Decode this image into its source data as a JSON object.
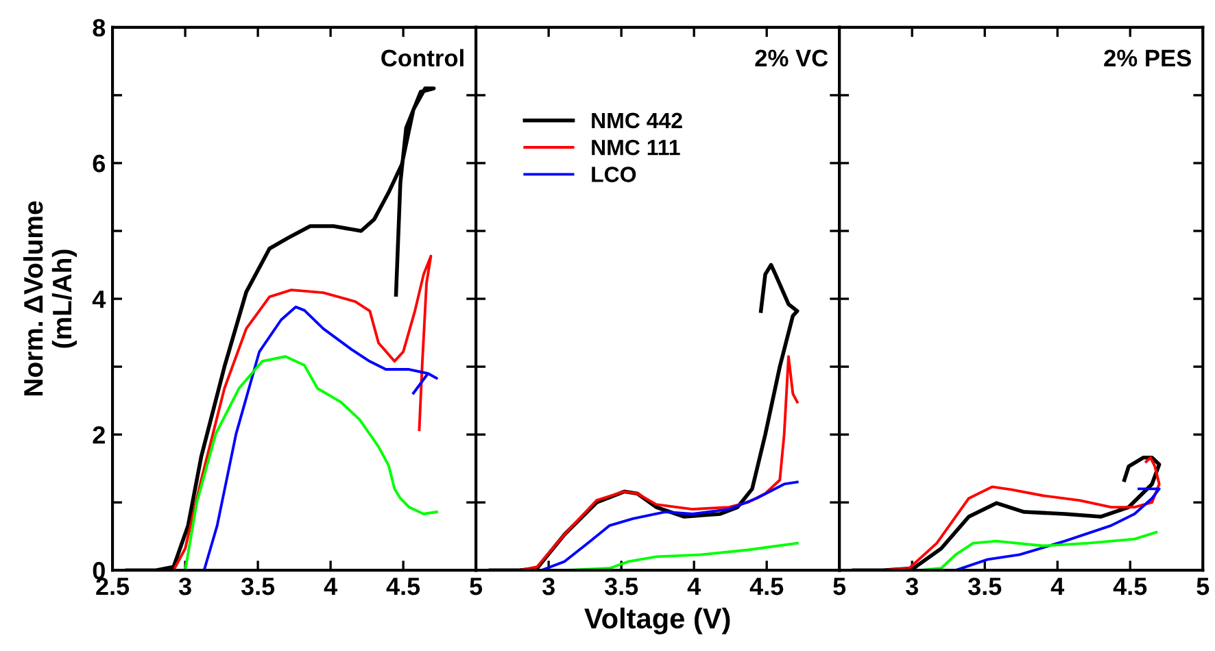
{
  "chart_data": [
    {
      "type": "line",
      "title": "Control",
      "ylabel": "Norm. ΔVolume\n(mL/Ah)",
      "xlim": [
        2.5,
        5
      ],
      "ylim": [
        0,
        8
      ],
      "xticks": [
        2.5,
        3,
        3.5,
        4,
        4.5,
        5
      ],
      "yticks": [
        0,
        {
          "value": 1,
          "label": null
        },
        2,
        {
          "value": 3,
          "label": null
        },
        4,
        {
          "value": 5,
          "label": null
        },
        6,
        {
          "value": 7,
          "label": null
        },
        8
      ],
      "grid": false,
      "legend": false,
      "marker": "none",
      "line_style": "solid",
      "series": [
        {
          "color": "#000000",
          "x": [
            2.6,
            2.8,
            2.92,
            3.02,
            3.11,
            3.27,
            3.42,
            3.58,
            3.71,
            3.86,
            4.02,
            4.21,
            4.3,
            4.4,
            4.49,
            4.57,
            4.65,
            4.71,
            4.62,
            4.52,
            4.48,
            4.45
          ],
          "values": [
            0,
            0,
            0.05,
            0.66,
            1.67,
            3.0,
            4.1,
            4.74,
            4.9,
            5.07,
            5.07,
            5.0,
            5.17,
            5.57,
            5.98,
            6.79,
            7.1,
            7.1,
            7.05,
            6.52,
            5.71,
            4.06
          ]
        },
        {
          "color": "#ff0000",
          "x": [
            2.6,
            2.92,
            3.0,
            3.11,
            3.27,
            3.42,
            3.58,
            3.73,
            3.95,
            4.17,
            4.27,
            4.33,
            4.44,
            4.5,
            4.58,
            4.64,
            4.69,
            4.66,
            4.63,
            4.61
          ],
          "values": [
            0,
            0,
            0.32,
            1.33,
            2.68,
            3.56,
            4.03,
            4.13,
            4.09,
            3.96,
            3.82,
            3.35,
            3.08,
            3.22,
            3.82,
            4.36,
            4.63,
            4.23,
            3.02,
            2.07
          ]
        },
        {
          "color": "#0000ff",
          "x": [
            2.6,
            3.13,
            3.22,
            3.35,
            3.51,
            3.66,
            3.76,
            3.82,
            3.95,
            4.14,
            4.26,
            4.38,
            4.54,
            4.67,
            4.73,
            4.67,
            4.57
          ],
          "values": [
            0,
            0,
            0.66,
            2.01,
            3.22,
            3.69,
            3.88,
            3.83,
            3.56,
            3.26,
            3.09,
            2.96,
            2.96,
            2.9,
            2.83,
            2.9,
            2.61
          ]
        },
        {
          "color": "#00ff00",
          "x": [
            2.6,
            3.0,
            3.08,
            3.21,
            3.37,
            3.53,
            3.69,
            3.82,
            3.91,
            4.07,
            4.2,
            4.33,
            4.4,
            4.44,
            4.48,
            4.54,
            4.64,
            4.73
          ],
          "values": [
            0,
            0,
            1.0,
            2.01,
            2.68,
            3.08,
            3.15,
            3.02,
            2.68,
            2.48,
            2.22,
            1.82,
            1.54,
            1.2,
            1.06,
            0.93,
            0.83,
            0.86
          ]
        }
      ]
    },
    {
      "type": "line",
      "title": "2% VC",
      "xlabel": "Voltage (V)",
      "xlim": [
        2.5,
        5
      ],
      "ylim": [
        0,
        8
      ],
      "xticks": [
        {
          "value": 2.5,
          "label": null
        },
        3,
        3.5,
        4,
        4.5,
        5
      ],
      "yticks": [
        0,
        1,
        2,
        3,
        4,
        5,
        6,
        7,
        8
      ],
      "tick_labels": "x",
      "grid": false,
      "legend": "top left",
      "marker": "none",
      "line_style": "solid",
      "series": [
        {
          "name": "NMC 442",
          "color": "#000000",
          "x": [
            2.6,
            2.8,
            2.92,
            3.11,
            3.33,
            3.52,
            3.61,
            3.74,
            3.93,
            4.18,
            4.3,
            4.4,
            4.49,
            4.59,
            4.68,
            4.71,
            4.65,
            4.56,
            4.53,
            4.49,
            4.46
          ],
          "values": [
            0,
            0,
            0.03,
            0.53,
            1.0,
            1.16,
            1.13,
            0.93,
            0.79,
            0.83,
            0.93,
            1.2,
            2.0,
            3.0,
            3.75,
            3.82,
            3.92,
            4.36,
            4.5,
            4.36,
            3.82
          ]
        },
        {
          "name": "NMC 111",
          "color": "#ff0000",
          "x": [
            2.6,
            2.8,
            2.92,
            3.11,
            3.33,
            3.52,
            3.61,
            3.74,
            3.99,
            4.24,
            4.37,
            4.49,
            4.59,
            4.62,
            4.65,
            4.68,
            4.71
          ],
          "values": [
            0,
            0,
            0.05,
            0.53,
            1.03,
            1.16,
            1.13,
            0.97,
            0.9,
            0.93,
            1.0,
            1.13,
            1.33,
            2.0,
            3.15,
            2.6,
            2.48
          ]
        },
        {
          "name": "LCO",
          "color": "#0000ff",
          "x": [
            2.6,
            2.95,
            3.11,
            3.27,
            3.42,
            3.58,
            3.8,
            3.99,
            4.24,
            4.43,
            4.62,
            4.71
          ],
          "values": [
            0,
            0,
            0.13,
            0.4,
            0.66,
            0.76,
            0.86,
            0.83,
            0.9,
            1.06,
            1.27,
            1.3
          ]
        },
        {
          "color": "#00ff00",
          "x": [
            2.6,
            3.11,
            3.42,
            3.55,
            3.74,
            4.05,
            4.37,
            4.71
          ],
          "values": [
            0,
            0,
            0.03,
            0.13,
            0.2,
            0.23,
            0.3,
            0.4
          ]
        }
      ]
    },
    {
      "type": "line",
      "title": "2% PES",
      "xlim": [
        2.5,
        5
      ],
      "ylim": [
        0,
        8
      ],
      "xticks": [
        {
          "value": 2.5,
          "label": null
        },
        3,
        3.5,
        4,
        4.5,
        5
      ],
      "yticks": [
        0,
        1,
        2,
        3,
        4,
        5,
        6,
        7,
        8
      ],
      "tick_labels": "x",
      "grid": false,
      "legend": false,
      "marker": "none",
      "line_style": "solid",
      "series": [
        {
          "color": "#000000",
          "x": [
            2.6,
            2.8,
            3.01,
            3.2,
            3.39,
            3.58,
            3.77,
            4.05,
            4.3,
            4.49,
            4.65,
            4.7,
            4.65,
            4.59,
            4.49,
            4.46
          ],
          "values": [
            0,
            0,
            0.03,
            0.32,
            0.79,
            0.99,
            0.86,
            0.83,
            0.79,
            0.93,
            1.27,
            1.56,
            1.66,
            1.66,
            1.53,
            1.33
          ]
        },
        {
          "color": "#ff0000",
          "x": [
            2.6,
            2.8,
            2.98,
            3.17,
            3.39,
            3.55,
            3.68,
            3.9,
            4.15,
            4.37,
            4.53,
            4.65,
            4.7,
            4.67,
            4.64,
            4.61
          ],
          "values": [
            0,
            0,
            0.03,
            0.4,
            1.06,
            1.23,
            1.19,
            1.1,
            1.03,
            0.93,
            0.93,
            1.0,
            1.27,
            1.53,
            1.66,
            1.6
          ]
        },
        {
          "color": "#0000ff",
          "x": [
            2.6,
            3.11,
            3.3,
            3.52,
            3.74,
            4.05,
            4.37,
            4.53,
            4.65,
            4.7,
            4.56
          ],
          "values": [
            0,
            0,
            0,
            0.16,
            0.23,
            0.43,
            0.66,
            0.83,
            1.06,
            1.2,
            1.2
          ]
        },
        {
          "color": "#00ff00",
          "x": [
            2.6,
            3.05,
            3.2,
            3.3,
            3.42,
            3.58,
            3.9,
            4.21,
            4.53,
            4.68
          ],
          "values": [
            0,
            0,
            0.03,
            0.23,
            0.4,
            0.43,
            0.36,
            0.4,
            0.46,
            0.56
          ]
        }
      ]
    }
  ]
}
